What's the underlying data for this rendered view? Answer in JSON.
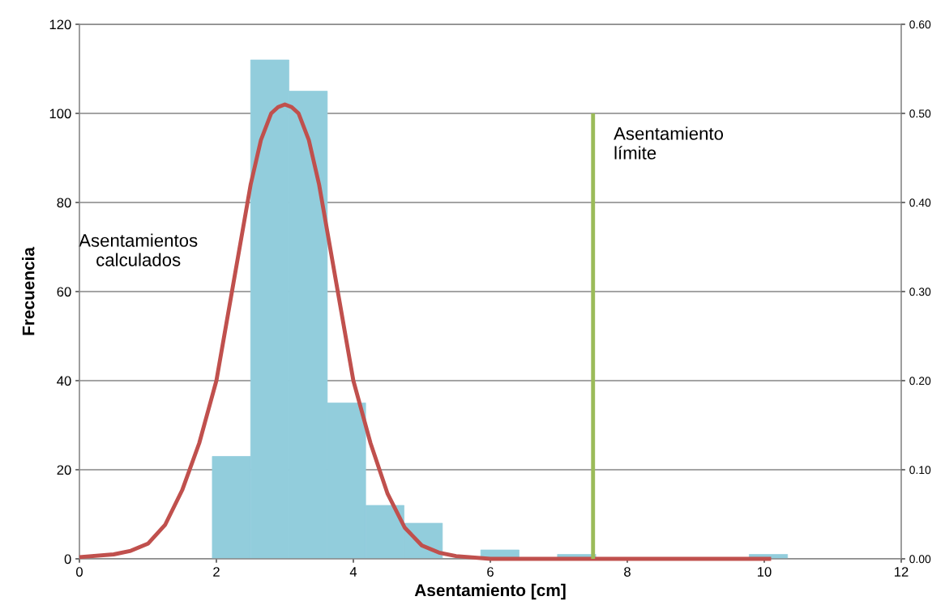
{
  "chart_data": {
    "type": "histogram",
    "xlabel": "Asentamiento [cm]",
    "ylabel": "Frecuencia",
    "bins": [
      1.94,
      2.5,
      3.06,
      3.62,
      4.18,
      4.74,
      5.3,
      5.86,
      6.42,
      6.98,
      7.54,
      8.1,
      8.66,
      9.22,
      9.78,
      10.34
    ],
    "values": [
      23,
      112,
      105,
      35,
      12,
      8,
      0,
      2,
      0,
      1,
      0,
      0,
      0,
      0,
      1
    ],
    "color": "#92cddc",
    "series": [
      {
        "type": "line",
        "axis": "y2",
        "color": "#c0504d",
        "x": [
          0,
          0.5,
          0.75,
          1.0,
          1.25,
          1.5,
          1.75,
          2.0,
          2.25,
          2.5,
          2.65,
          2.8,
          2.9,
          3.0,
          3.1,
          3.2,
          3.35,
          3.5,
          3.75,
          4.0,
          4.25,
          4.5,
          4.75,
          5.0,
          5.25,
          5.5,
          6.0,
          8.0,
          10.1
        ],
        "values": [
          0.002,
          0.005,
          0.009,
          0.017,
          0.038,
          0.077,
          0.13,
          0.2,
          0.31,
          0.42,
          0.47,
          0.5,
          0.507,
          0.51,
          0.507,
          0.5,
          0.47,
          0.42,
          0.31,
          0.2,
          0.13,
          0.073,
          0.035,
          0.015,
          0.007,
          0.003,
          0.0,
          0.0,
          0.0
        ]
      },
      {
        "type": "line",
        "axis": "y2",
        "color": "#9bbb59",
        "x": [
          7.5,
          7.5
        ],
        "values": [
          0.0,
          0.5
        ]
      }
    ],
    "xlim": [
      0,
      12
    ],
    "xticks": [
      0,
      2,
      4,
      6,
      8,
      10,
      12
    ],
    "ylim": [
      0,
      120
    ],
    "yticks": [
      0,
      20,
      40,
      60,
      80,
      100,
      120
    ],
    "y2lim": [
      0,
      0.6
    ],
    "y2ticks": [
      {
        "value": 0,
        "label": "0.00"
      },
      {
        "value": 0.1,
        "label": "0.10"
      },
      {
        "value": 0.2,
        "label": "0.20"
      },
      {
        "value": 0.3,
        "label": "0.30"
      },
      {
        "value": 0.4,
        "label": "0.40"
      },
      {
        "value": 0.5,
        "label": "0.50"
      },
      {
        "value": 0.6,
        "label": "0.60"
      }
    ],
    "grid": "y",
    "marker": "none",
    "line_style": "solid",
    "annotations": [
      {
        "text": "Asentamiento\nlímite",
        "x": 7.5,
        "y": 100
      },
      "Asentamientos\ncalculados"
    ]
  }
}
